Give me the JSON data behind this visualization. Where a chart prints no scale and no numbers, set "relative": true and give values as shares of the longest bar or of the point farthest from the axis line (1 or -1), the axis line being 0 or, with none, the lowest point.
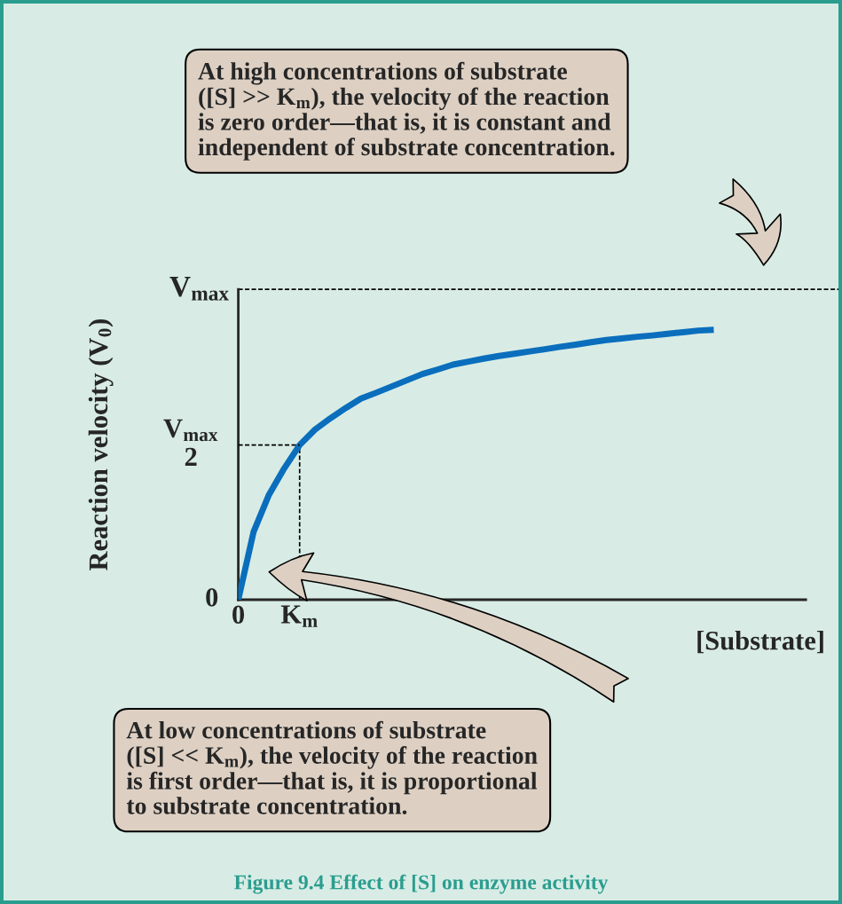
{
  "chart_data": {
    "type": "line",
    "relative": true,
    "xlabel": "[Substrate]",
    "ylabel": "Reaction velocity (V$_{0}$)",
    "categories": [
      "0",
      null,
      null,
      null,
      "K$_{m}$",
      null,
      null,
      null,
      null,
      null,
      null,
      null,
      null,
      null,
      null,
      null,
      null,
      null,
      null,
      null,
      null,
      null,
      null,
      null,
      null,
      null,
      null,
      null,
      null,
      null,
      null,
      null,
      null,
      null,
      null,
      null,
      null,
      null
    ],
    "series": [
      {
        "color": "#0a6ebd",
        "line_style": "solid",
        "values": [
          0,
          0.252,
          0.389,
          0.487,
          0.573,
          0.63,
          0.672,
          0.71,
          0.745,
          0.767,
          0.79,
          0.813,
          0.836,
          0.853,
          0.871,
          0.882,
          0.893,
          0.903,
          0.911,
          0.92,
          0.928,
          0.937,
          0.945,
          0.954,
          0.962,
          0.968,
          0.974,
          0.979,
          0.985,
          0.991,
          0.997,
          1.0,
          null,
          null,
          null,
          null,
          null,
          null
        ]
      },
      {
        "color": "#000000",
        "line_style": "dashed",
        "values": [
          0.573,
          0.573,
          0.573,
          0.573,
          0.573,
          null,
          null,
          null,
          null,
          null,
          null,
          null,
          null,
          null,
          null,
          null,
          null,
          null,
          null,
          null,
          null,
          null,
          null,
          null,
          null,
          null,
          null,
          null,
          null,
          null,
          null,
          null,
          null,
          null,
          null,
          null,
          null,
          null
        ]
      }
    ],
    "ref_lines": [
      {
        "axis": "y",
        "value": 1.15,
        "label": "V$_{max}$",
        "color": "#000000",
        "line_style": "dashed"
      },
      {
        "axis": "x",
        "value": "K$_{m}$",
        "color": "#000000",
        "line_style": "dashed"
      }
    ],
    "grid": false,
    "annotations": [
      "V$_{max}$\n2",
      "0",
      "At high concentrations of substrate\n([S] >> K$_{m}$), the velocity of the reaction\nis zero order—that is, it is constant and\nindependent of substrate concentration.",
      "At low concentrations of substrate\n([S] << K$_{m}$), the velocity of the reaction\nis first order—that is, it is proportional\nto substrate concentration.",
      "Figure 9.4 Effect of [S] on enzyme activity"
    ]
  }
}
